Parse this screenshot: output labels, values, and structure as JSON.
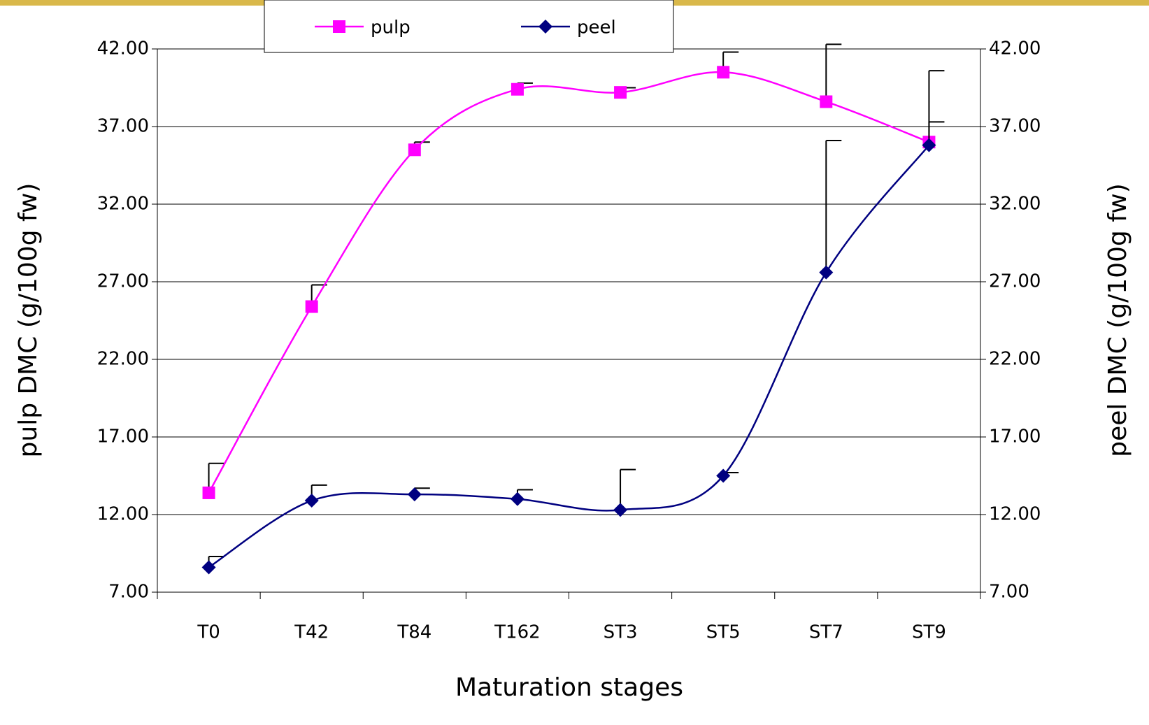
{
  "chart_data": {
    "type": "line",
    "x_label": "Maturation stages",
    "y_label": "pulp DMC (g/100g fw)",
    "y2_label": "peel DMC (g/100g fw)",
    "categories": [
      "T0",
      "T42",
      "T84",
      "T162",
      "ST3",
      "ST5",
      "ST7",
      "ST9"
    ],
    "series": [
      {
        "name": "pulp",
        "color": "#ff00ff",
        "marker": "square",
        "values": [
          13.4,
          25.4,
          35.5,
          39.4,
          39.2,
          40.5,
          38.6,
          36.0
        ],
        "errors": [
          1.9,
          1.4,
          0.5,
          0.4,
          0.3,
          1.3,
          3.7,
          4.6
        ]
      },
      {
        "name": "peel",
        "color": "#000080",
        "marker": "diamond",
        "axis": "y2",
        "values": [
          8.6,
          12.9,
          13.3,
          13.0,
          12.3,
          14.5,
          27.6,
          35.8
        ],
        "errors": [
          0.7,
          1.0,
          0.4,
          0.6,
          2.6,
          0.2,
          8.5,
          1.5
        ]
      }
    ],
    "ylim": [
      7,
      42
    ],
    "yticks": [
      {
        "value": 7,
        "label": "7.00"
      },
      {
        "value": 12,
        "label": "12.00"
      },
      {
        "value": 17,
        "label": "17.00"
      },
      {
        "value": 22,
        "label": "22.00"
      },
      {
        "value": 27,
        "label": "27.00"
      },
      {
        "value": 32,
        "label": "32.00"
      },
      {
        "value": 37,
        "label": "37.00"
      },
      {
        "value": 42,
        "label": "42.00"
      }
    ],
    "y2lim": [
      7,
      42
    ],
    "y2ticks": [
      {
        "value": 7,
        "label": "7.00"
      },
      {
        "value": 12,
        "label": "12.00"
      },
      {
        "value": 17,
        "label": "17.00"
      },
      {
        "value": 22,
        "label": "22.00"
      },
      {
        "value": 27,
        "label": "27.00"
      },
      {
        "value": 32,
        "label": "32.00"
      },
      {
        "value": 37,
        "label": "37.00"
      },
      {
        "value": 42,
        "label": "42.00"
      }
    ],
    "grid": true,
    "legend": "top"
  }
}
